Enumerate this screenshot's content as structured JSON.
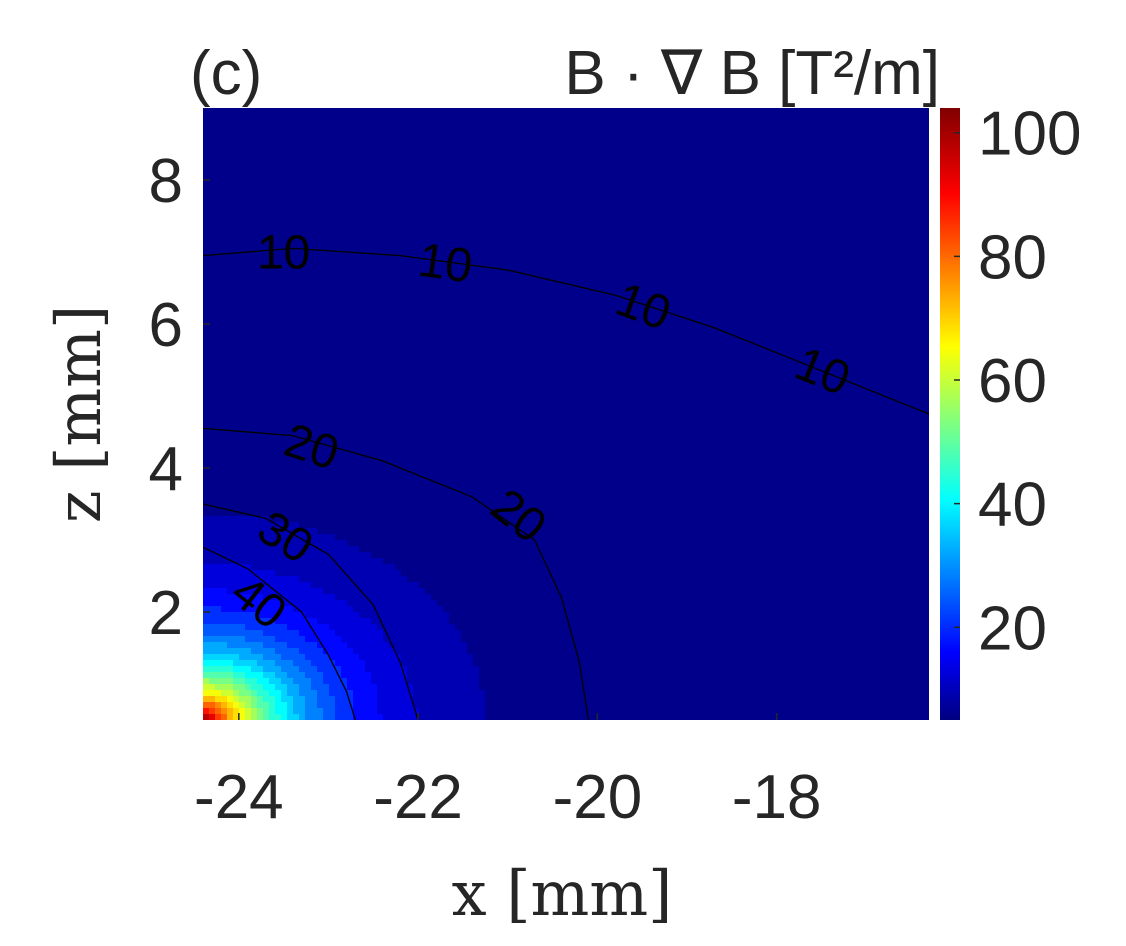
{
  "chart_data": {
    "type": "contour",
    "panel_label": "(c)",
    "title": "B · ∇ B [T²/m]",
    "xlabel": "x [mm]",
    "ylabel": "z [mm]",
    "xlim": [
      -24.4,
      -16.3
    ],
    "ylim": [
      0.5,
      9.0
    ],
    "xticks": [
      -24,
      -22,
      -20,
      -18
    ],
    "yticks": [
      2,
      4,
      6,
      8
    ],
    "colorbar": {
      "range": [
        5,
        104
      ],
      "ticks": [
        20,
        40,
        60,
        80,
        100
      ],
      "colormap": "jet"
    },
    "contour_levels": [
      10,
      20,
      30,
      40
    ],
    "contour_lines": [
      {
        "level": 10,
        "points": [
          [
            -24.4,
            6.95
          ],
          [
            -23.4,
            7.05
          ],
          [
            -22.2,
            6.95
          ],
          [
            -21.0,
            6.75
          ],
          [
            -19.8,
            6.4
          ],
          [
            -18.7,
            5.95
          ],
          [
            -17.6,
            5.4
          ],
          [
            -16.6,
            4.9
          ],
          [
            -16.3,
            4.75
          ]
        ]
      },
      {
        "level": 20,
        "points": [
          [
            -24.4,
            4.55
          ],
          [
            -23.4,
            4.45
          ],
          [
            -22.4,
            4.1
          ],
          [
            -21.4,
            3.6
          ],
          [
            -20.7,
            3.0
          ],
          [
            -20.4,
            2.2
          ],
          [
            -20.2,
            1.3
          ],
          [
            -20.1,
            0.5
          ]
        ]
      },
      {
        "level": 30,
        "points": [
          [
            -24.4,
            3.5
          ],
          [
            -23.7,
            3.3
          ],
          [
            -23.0,
            2.8
          ],
          [
            -22.5,
            2.1
          ],
          [
            -22.2,
            1.3
          ],
          [
            -22.0,
            0.5
          ]
        ]
      },
      {
        "level": 40,
        "points": [
          [
            -24.4,
            2.9
          ],
          [
            -23.9,
            2.6
          ],
          [
            -23.3,
            2.0
          ],
          [
            -23.0,
            1.4
          ],
          [
            -22.8,
            0.9
          ],
          [
            -22.7,
            0.5
          ]
        ]
      }
    ],
    "contour_labels": [
      {
        "level": 10,
        "text": "10",
        "at": [
          -23.5,
          6.95
        ],
        "angle": 0
      },
      {
        "level": 10,
        "text": "10",
        "at": [
          -21.7,
          6.8
        ],
        "angle": 8
      },
      {
        "level": 10,
        "text": "10",
        "at": [
          -19.5,
          6.2
        ],
        "angle": 20
      },
      {
        "level": 10,
        "text": "10",
        "at": [
          -17.5,
          5.3
        ],
        "angle": 22
      },
      {
        "level": 20,
        "text": "20",
        "at": [
          -23.2,
          4.25
        ],
        "angle": 18
      },
      {
        "level": 20,
        "text": "20",
        "at": [
          -20.9,
          3.3
        ],
        "angle": 38
      },
      {
        "level": 30,
        "text": "30",
        "at": [
          -23.5,
          3.0
        ],
        "angle": 32
      },
      {
        "level": 40,
        "text": "40",
        "at": [
          -23.8,
          2.1
        ],
        "angle": 38
      }
    ]
  }
}
